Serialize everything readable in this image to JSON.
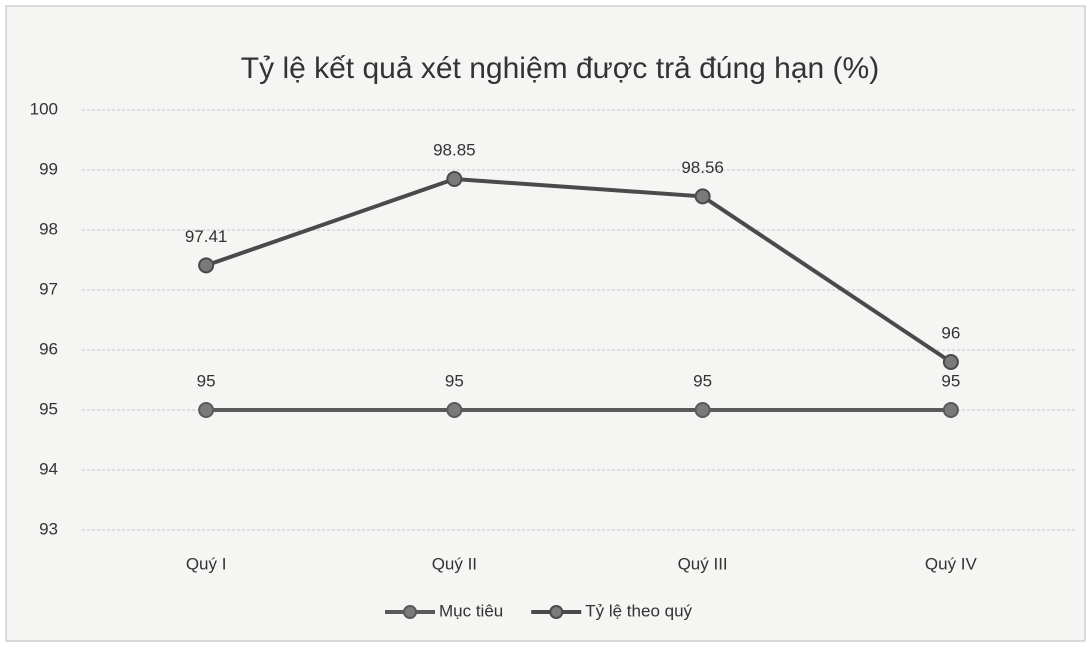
{
  "chart_data": {
    "type": "line",
    "title": "Tỷ lệ kết quả xét nghiệm được trả đúng hạn (%)",
    "categories": [
      "Quý I",
      "Quý II",
      "Quý III",
      "Quý IV"
    ],
    "series": [
      {
        "name": "Mục tiêu",
        "color": "#5a5a5a",
        "values": [
          95,
          95,
          95,
          95
        ]
      },
      {
        "name": "Tỷ lệ theo quý",
        "color": "#4a4a4a",
        "values": [
          97.41,
          98.85,
          98.56,
          95.8
        ],
        "value_labels": [
          "97.41",
          "98.85",
          "98.56",
          "96"
        ]
      }
    ],
    "ylim": [
      93,
      100
    ],
    "yticks": [
      93,
      94,
      95,
      96,
      97,
      98,
      99,
      100
    ],
    "grid": true,
    "legend": "bottom"
  }
}
